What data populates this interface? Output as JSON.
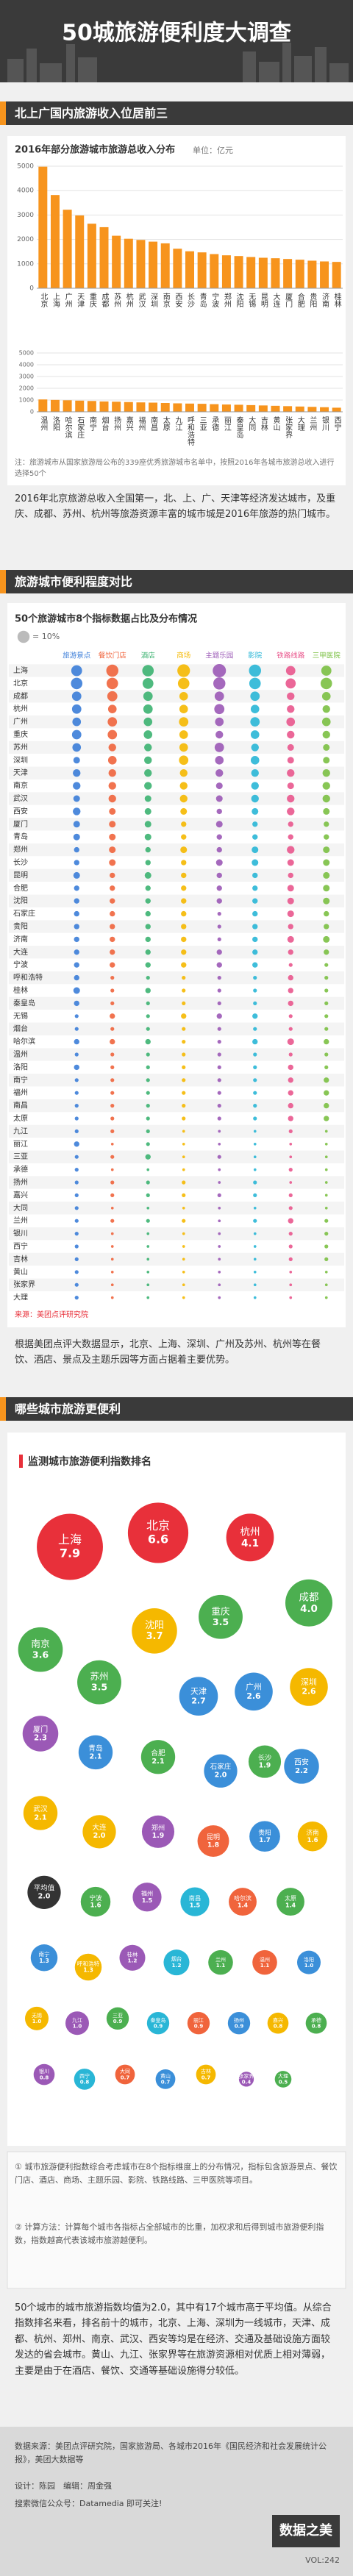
{
  "header": {
    "title": "50城旅游便利度大调查"
  },
  "sections": [
    {
      "title": "北上广国内旅游收入位居前三",
      "note": "注：旅游城市从国家旅游局公布的339座优秀旅游城市名单中，按照2016年各城市旅游总收入进行选择50个",
      "text": "2016年北京旅游总收入全国第一，北、上、广、天津等经济发达城市，及重庆、成都、苏州、杭州等旅游资源丰富的城市城是2016年旅游的热门城市。"
    },
    {
      "title": "旅游城市便利程度对比",
      "source": "来源：美团点评研究院",
      "text": "根据美团点评大数据显示，北京、上海、深圳、广州及苏州、杭州等在餐饮、酒店、景点及主题乐园等方面占据着主要优势。"
    },
    {
      "title": "哪些城市旅游更便利",
      "notes": [
        "① 城市旅游便利指数综合考虑城市在8个指标维度上的分布情况，指标包含旅游景点、餐饮门店、酒店、商场、主题乐园、影院、铁路线路、三甲医院等项目。",
        "② 计算方法：计算每个城市各指标占全部城市的比重，加权求和后得到城市旅游便利指数，指数越高代表该城市旅游越便利。"
      ],
      "text": "50个城市的城市旅游指数均值为2.0，其中有17个城市高于平均值。从综合指数排名来看，排名前十的城市，北京、上海、深圳为一线城市，天津、成都、杭州、郑州、南京、武汉、西安等均是在经济、交通及基础设施方面较发达的省会城市。黄山、九江、张家界等在旅游资源相对优质上相对薄弱，主要是由于在酒店、餐饮、交通等基础设施得分较低。"
    }
  ],
  "chart_data": [
    {
      "type": "bar",
      "title": "2016年部分旅游城市旅游总收入分布",
      "unit": "单位：亿元",
      "categories": [
        "北京",
        "上海",
        "广州",
        "天津",
        "重庆",
        "成都",
        "苏州",
        "杭州",
        "武汉",
        "深圳",
        "南京",
        "西安",
        "长沙",
        "青岛",
        "宁波",
        "郑州",
        "沈阳",
        "无锡",
        "昆明",
        "大连",
        "厦门",
        "合肥",
        "贵阳",
        "济南",
        "桂林",
        "温州",
        "洛阳",
        "哈尔滨",
        "石家庄",
        "南宁",
        "烟台",
        "扬州",
        "嘉兴",
        "福州",
        "南昌",
        "太原",
        "九江",
        "呼和浩特",
        "三亚",
        "承德",
        "丽江",
        "秦皇岛",
        "大同",
        "吉林",
        "黄山",
        "张家界",
        "大理",
        "兰州",
        "银川",
        "西宁"
      ],
      "values": [
        4980,
        3820,
        3217,
        2982,
        2645,
        2502,
        2151,
        2028,
        1980,
        1910,
        1840,
        1620,
        1515,
        1470,
        1400,
        1350,
        1320,
        1280,
        1250,
        1230,
        1200,
        1170,
        1130,
        1100,
        1080,
        1050,
        1010,
        980,
        950,
        920,
        880,
        860,
        830,
        800,
        780,
        750,
        720,
        700,
        680,
        650,
        620,
        600,
        570,
        540,
        510,
        480,
        450,
        420,
        390,
        350
      ],
      "color": "#f7941d",
      "ylim": [
        0,
        5000
      ],
      "yticks": [
        0,
        1000,
        2000,
        3000,
        4000,
        5000
      ],
      "grid": true
    },
    {
      "type": "dot_matrix",
      "title": "50个旅游城市8个指标数据占比及分布情况",
      "size_legend": {
        "value": 10,
        "label": "= 10%"
      },
      "categories": [
        "上海",
        "北京",
        "成都",
        "杭州",
        "广州",
        "重庆",
        "苏州",
        "深圳",
        "天津",
        "南京",
        "武汉",
        "西安",
        "厦门",
        "青岛",
        "郑州",
        "长沙",
        "昆明",
        "合肥",
        "沈阳",
        "石家庄",
        "贵阳",
        "济南",
        "大连",
        "宁波",
        "呼和浩特",
        "桂林",
        "秦皇岛",
        "无锡",
        "烟台",
        "哈尔滨",
        "温州",
        "洛阳",
        "南宁",
        "福州",
        "南昌",
        "太原",
        "九江",
        "丽江",
        "三亚",
        "承德",
        "扬州",
        "嘉兴",
        "大同",
        "兰州",
        "银川",
        "西宁",
        "吉林",
        "黄山",
        "张家界",
        "大理"
      ],
      "series": [
        {
          "name": "旅游景点",
          "color": "#3b7dd8",
          "values": [
            8,
            9,
            6,
            6,
            5,
            6,
            5,
            3,
            4,
            4,
            3,
            4,
            3,
            3,
            2,
            2,
            3,
            2,
            2,
            2,
            2,
            2,
            2,
            2,
            2,
            3,
            2,
            1,
            1,
            2,
            1,
            2,
            1,
            1,
            1,
            1,
            1,
            2,
            1,
            1,
            1,
            1,
            1,
            1,
            1,
            1,
            1,
            1,
            1,
            1
          ]
        },
        {
          "name": "餐饮门店",
          "color": "#f0643c",
          "values": [
            10,
            9,
            7,
            5,
            6,
            6,
            4,
            5,
            4,
            4,
            4,
            3,
            3,
            3,
            3,
            3,
            2,
            2,
            2,
            2,
            2,
            2,
            2,
            2,
            1,
            1,
            1,
            2,
            1,
            2,
            1,
            1,
            1,
            1,
            1,
            1,
            1,
            0.5,
            1,
            0.5,
            1,
            1,
            0.5,
            1,
            0.5,
            0.5,
            0.5,
            0.5,
            0.5,
            0.5
          ]
        },
        {
          "name": "酒店",
          "color": "#3cb371",
          "values": [
            9,
            8,
            6,
            6,
            5,
            5,
            4,
            4,
            4,
            4,
            3,
            3,
            3,
            3,
            2,
            2,
            3,
            2,
            2,
            2,
            2,
            2,
            2,
            2,
            1,
            2,
            1,
            1,
            1,
            2,
            1,
            1,
            1,
            1,
            1,
            1,
            1,
            1,
            2,
            0.5,
            1,
            1,
            0.5,
            1,
            0.5,
            0.5,
            0.5,
            0.5,
            0.5,
            0.5
          ]
        },
        {
          "name": "商场",
          "color": "#f5b800",
          "values": [
            11,
            9,
            5,
            5,
            6,
            5,
            5,
            6,
            4,
            4,
            4,
            3,
            2,
            2,
            3,
            2,
            2,
            2,
            2,
            2,
            2,
            2,
            2,
            2,
            1,
            1,
            1,
            2,
            1,
            1,
            1,
            1,
            1,
            1,
            1,
            1,
            0.5,
            0.5,
            0.5,
            0.5,
            1,
            1,
            0.5,
            1,
            0.5,
            0.5,
            0.5,
            0.5,
            0.5,
            0.5
          ]
        },
        {
          "name": "主题乐园",
          "color": "#9b59b6",
          "values": [
            12,
            10,
            6,
            7,
            5,
            4,
            6,
            5,
            4,
            3,
            3,
            2,
            3,
            2,
            2,
            3,
            2,
            2,
            2,
            1,
            1,
            1,
            2,
            2,
            1,
            1,
            1,
            2,
            1,
            1,
            1,
            1,
            1,
            1,
            1,
            1,
            0.5,
            0.5,
            1,
            0.5,
            0.5,
            1,
            0.5,
            0.5,
            0.5,
            0.5,
            0.5,
            0.5,
            0.5,
            0.5
          ]
        },
        {
          "name": "影院",
          "color": "#29b6d6",
          "values": [
            10,
            9,
            6,
            5,
            6,
            5,
            4,
            5,
            4,
            4,
            4,
            3,
            2,
            2,
            3,
            3,
            2,
            2,
            2,
            2,
            2,
            2,
            2,
            2,
            1,
            1,
            1,
            2,
            1,
            2,
            1,
            1,
            1,
            1,
            1,
            1,
            0.5,
            0.5,
            0.5,
            0.5,
            1,
            1,
            0.5,
            1,
            0.5,
            0.5,
            0.5,
            0.5,
            0.5,
            0.5
          ]
        },
        {
          "name": "铁路线路",
          "color": "#e9578d",
          "values": [
            6,
            7,
            4,
            4,
            5,
            4,
            3,
            3,
            4,
            3,
            4,
            4,
            2,
            2,
            4,
            3,
            2,
            3,
            3,
            3,
            2,
            3,
            2,
            1,
            2,
            2,
            2,
            1,
            1,
            3,
            1,
            2,
            2,
            2,
            2,
            2,
            1,
            0.5,
            0.5,
            1,
            0.5,
            1,
            1,
            2,
            1,
            1,
            1,
            0.5,
            0.5,
            0.5
          ]
        },
        {
          "name": "三甲医院",
          "color": "#7bc043",
          "values": [
            7,
            9,
            5,
            4,
            5,
            4,
            3,
            3,
            4,
            4,
            4,
            3,
            2,
            2,
            3,
            3,
            3,
            3,
            3,
            2,
            2,
            3,
            2,
            1,
            1,
            1,
            1,
            1,
            1,
            2,
            1,
            1,
            2,
            2,
            2,
            2,
            0.5,
            0.5,
            0.5,
            0.5,
            0.5,
            0.5,
            0.5,
            1,
            1,
            1,
            1,
            0.5,
            0.5,
            0.5
          ]
        }
      ]
    },
    {
      "type": "bubble",
      "title": "监测城市旅游便利指数排名",
      "categories": [
        "上海",
        "北京",
        "杭州",
        "成都",
        "南京",
        "苏州",
        "沈阳",
        "重庆",
        "天津",
        "广州",
        "深圳",
        "西安",
        "厦门",
        "青岛",
        "武汉",
        "合肥",
        "石家庄",
        "大连",
        "平均值",
        "郑州",
        "长沙",
        "昆明",
        "贵阳",
        "济南",
        "宁波",
        "福州",
        "南昌",
        "哈尔滨",
        "太原",
        "南宁",
        "呼和浩特",
        "桂林",
        "烟台",
        "兰州",
        "温州",
        "洛阳",
        "无锡",
        "九江",
        "三亚",
        "秦皇岛",
        "丽江",
        "扬州",
        "嘉兴",
        "承德",
        "银川",
        "西宁",
        "大同",
        "黄山",
        "吉林",
        "张家界",
        "大理"
      ],
      "values": [
        7.9,
        6.6,
        4.1,
        4,
        3.6,
        3.5,
        3.7,
        3.5,
        2.7,
        2.6,
        2.6,
        2.2,
        2.3,
        2.1,
        2.1,
        2.1,
        2,
        2,
        2,
        1.9,
        1.9,
        1.8,
        1.7,
        1.6,
        1.6,
        1.5,
        1.5,
        1.4,
        1.4,
        1.3,
        1.3,
        1.2,
        1.2,
        1.1,
        1.1,
        1,
        1,
        1,
        0.9,
        0.9,
        0.9,
        0.9,
        0.8,
        0.8,
        0.8,
        0.8,
        0.7,
        0.7,
        0.7,
        0.4,
        0.5
      ],
      "value_labels": [
        "7.9",
        "6.6",
        "4.1",
        "4.0",
        "3.6",
        "3.5",
        "3.7",
        "3.5",
        "2.7",
        "2.6",
        "2.6",
        "2.2",
        "2.3",
        "2.1",
        "2.1",
        "2.1",
        "2.0",
        "2.0",
        "2.0",
        "1.9",
        "1.9",
        "1.8",
        "1.7",
        "1.6",
        "1.6",
        "1.5",
        "1.5",
        "1.4",
        "1.4",
        "1.3",
        "1.3",
        "1.2",
        "1.2",
        "1.1",
        "1.1",
        "1.0",
        "1.0",
        "1.0",
        "0.9",
        "0.9",
        "0.9",
        "0.9",
        "0.8",
        "0.8",
        "0.8",
        "0.8",
        "0.7",
        "0.7",
        "0.7",
        "0.4",
        "0.5"
      ],
      "colors": [
        "#e8303a",
        "#e8303a",
        "#e8303a",
        "#4caf50",
        "#4caf50",
        "#4caf50",
        "#f5b800",
        "#4caf50",
        "#3b8fd9",
        "#3b8fd9",
        "#f5b800",
        "#3b8fd9",
        "#9b59b6",
        "#3b8fd9",
        "#f5b800",
        "#4caf50",
        "#3b8fd9",
        "#f5b800",
        "#333333",
        "#9b59b6",
        "#4caf50",
        "#f0643c",
        "#3b8fd9",
        "#f5b800",
        "#4caf50",
        "#9b59b6",
        "#29b6d6",
        "#f0643c",
        "#4caf50",
        "#3b8fd9",
        "#f5b800",
        "#9b59b6",
        "#29b6d6",
        "#4caf50",
        "#f0643c",
        "#3b8fd9",
        "#f5b800",
        "#9b59b6",
        "#4caf50",
        "#29b6d6",
        "#f0643c",
        "#3b8fd9",
        "#f5b800",
        "#4caf50",
        "#9b59b6",
        "#29b6d6",
        "#f0643c",
        "#3b8fd9",
        "#f5b800",
        "#9b59b6",
        "#4caf50"
      ]
    }
  ],
  "footer": {
    "source": "数据来源：美团点评研究院，国家旅游局、各城市2016年《国民经济和社会发展统计公报》，美团大数据等",
    "credits": "设计：陈园　编辑：周金强",
    "follow": "搜索微信公众号：Datamedia 即可关注!",
    "vol": "VOL:242",
    "logo": "数据之美"
  }
}
